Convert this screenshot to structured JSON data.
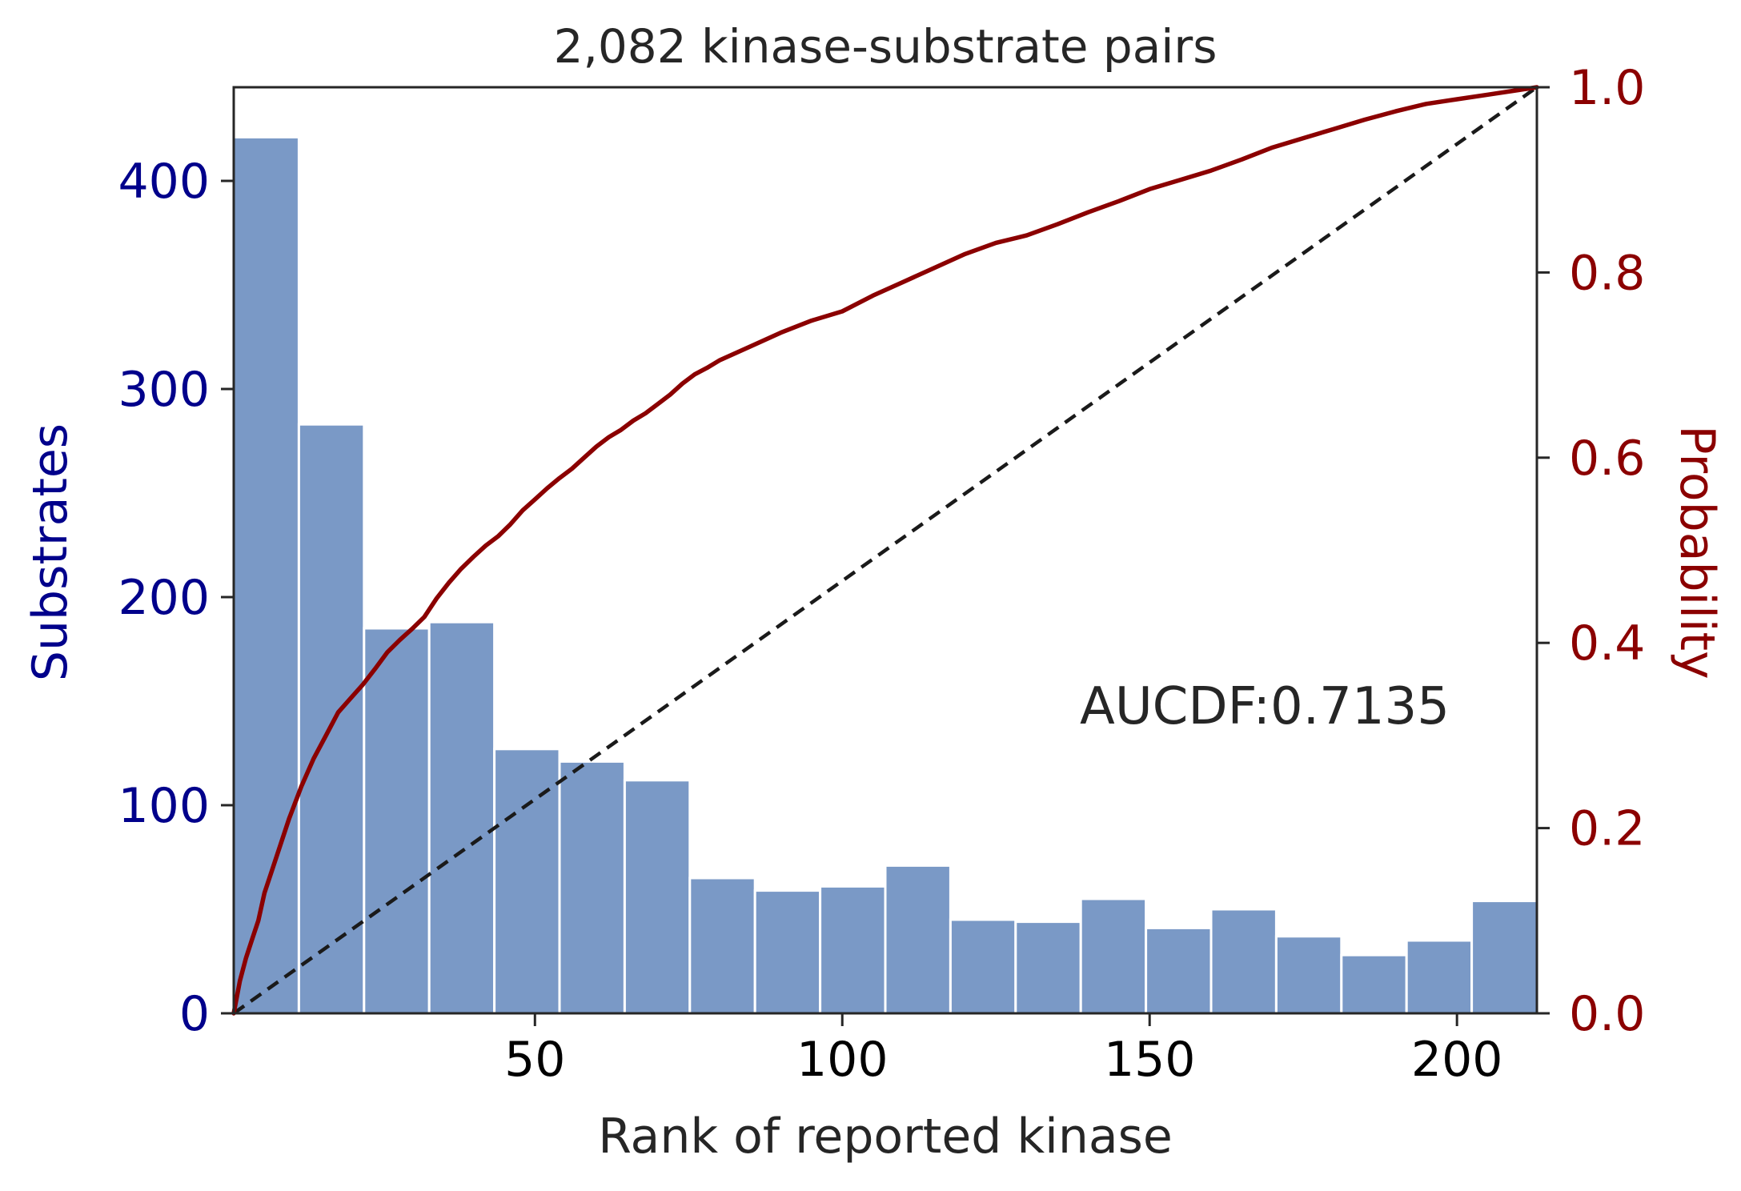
{
  "chart_data": {
    "type": "bar",
    "title": "2,082 kinase-substrate pairs",
    "xlabel": "Rank of reported kinase",
    "ylabel_left": "Substrates",
    "ylabel_right": "Probability",
    "annotation": "AUCDF:0.7135",
    "xlim": [
      1,
      213
    ],
    "ylim_left": [
      0,
      445
    ],
    "ylim_right": [
      0.0,
      1.0
    ],
    "x_ticks": [
      50,
      100,
      150,
      200
    ],
    "x_tick_labels": [
      "50",
      "100",
      "150",
      "200"
    ],
    "y_left_ticks": [
      0,
      100,
      200,
      300,
      400
    ],
    "y_left_tick_labels": [
      "0",
      "100",
      "200",
      "300",
      "400"
    ],
    "y_right_ticks": [
      0.0,
      0.2,
      0.4,
      0.6,
      0.8,
      1.0
    ],
    "y_right_tick_labels": [
      "0.0",
      "0.2",
      "0.4",
      "0.6",
      "0.8",
      "1.0"
    ],
    "grid": false,
    "colors": {
      "bars": "#7a99c6",
      "cdf_line": "#8b0000",
      "diagonal": "#1a1a1a",
      "left_axis_text": "#00008b",
      "right_axis_text": "#8b0000",
      "text": "#262626"
    },
    "histogram": {
      "bin_edges": [
        1,
        11.6,
        22.2,
        32.8,
        43.4,
        54,
        64.6,
        75.2,
        85.8,
        96.4,
        107,
        117.6,
        128.2,
        138.8,
        149.4,
        160,
        170.6,
        181.2,
        191.8,
        202.4,
        213
      ],
      "counts": [
        421,
        283,
        185,
        188,
        127,
        121,
        112,
        65,
        59,
        61,
        71,
        45,
        44,
        55,
        41,
        50,
        37,
        28,
        35,
        54
      ]
    },
    "cdf_line": {
      "x": [
        1,
        2,
        3,
        4,
        5,
        6,
        7,
        8,
        10,
        12,
        14,
        16,
        18,
        20,
        22,
        24,
        26,
        28,
        30,
        32,
        34,
        36,
        38,
        40,
        42,
        44,
        46,
        48,
        50,
        52,
        54,
        56,
        58,
        60,
        62,
        64,
        66,
        68,
        70,
        72,
        74,
        76,
        78,
        80,
        85,
        90,
        95,
        100,
        105,
        110,
        115,
        120,
        125,
        130,
        135,
        140,
        145,
        150,
        155,
        160,
        165,
        170,
        175,
        180,
        185,
        190,
        195,
        200,
        205,
        210,
        213
      ],
      "y": [
        0.0,
        0.035,
        0.06,
        0.08,
        0.1,
        0.13,
        0.15,
        0.17,
        0.21,
        0.245,
        0.275,
        0.3,
        0.325,
        0.34,
        0.355,
        0.372,
        0.39,
        0.403,
        0.415,
        0.428,
        0.448,
        0.465,
        0.48,
        0.493,
        0.505,
        0.515,
        0.528,
        0.543,
        0.555,
        0.567,
        0.578,
        0.588,
        0.6,
        0.612,
        0.622,
        0.63,
        0.64,
        0.648,
        0.658,
        0.668,
        0.68,
        0.69,
        0.697,
        0.705,
        0.72,
        0.735,
        0.748,
        0.758,
        0.775,
        0.79,
        0.805,
        0.82,
        0.832,
        0.84,
        0.852,
        0.865,
        0.877,
        0.89,
        0.9,
        0.91,
        0.922,
        0.935,
        0.945,
        0.955,
        0.965,
        0.974,
        0.982,
        0.987,
        0.992,
        0.997,
        1.0
      ]
    },
    "diagonal": {
      "x": [
        1,
        213
      ],
      "y": [
        0.0,
        1.0
      ]
    }
  }
}
